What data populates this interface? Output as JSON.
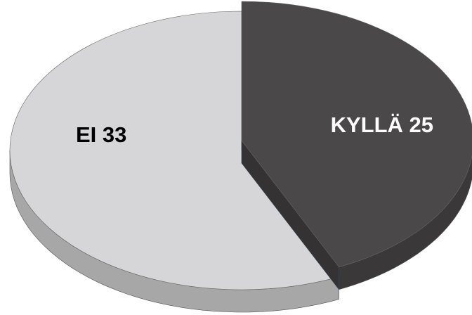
{
  "chart_data": {
    "type": "pie",
    "categories": [
      "KYLLÄ",
      "EI"
    ],
    "values": [
      25,
      33
    ],
    "colors": [
      "#4a4849",
      "#d6d6d8"
    ],
    "label_colors": [
      "#ffffff",
      "#000000"
    ]
  }
}
